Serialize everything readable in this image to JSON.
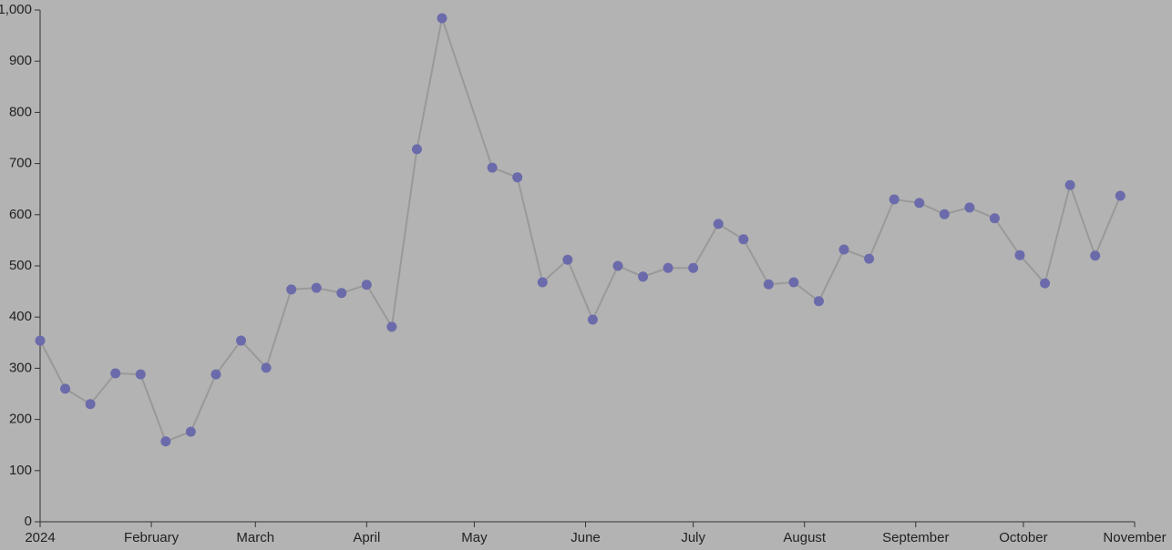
{
  "chart_data": {
    "type": "line",
    "x": [
      "2024-01-01",
      "2024-01-08",
      "2024-01-15",
      "2024-01-22",
      "2024-01-29",
      "2024-02-05",
      "2024-02-12",
      "2024-02-19",
      "2024-02-26",
      "2024-03-04",
      "2024-03-11",
      "2024-03-18",
      "2024-03-25",
      "2024-04-01",
      "2024-04-08",
      "2024-04-15",
      "2024-04-22",
      "2024-05-06",
      "2024-05-13",
      "2024-05-20",
      "2024-05-27",
      "2024-06-03",
      "2024-06-10",
      "2024-06-17",
      "2024-06-24",
      "2024-07-01",
      "2024-07-08",
      "2024-07-15",
      "2024-07-22",
      "2024-07-29",
      "2024-08-05",
      "2024-08-12",
      "2024-08-19",
      "2024-08-26",
      "2024-09-02",
      "2024-09-09",
      "2024-09-16",
      "2024-09-23",
      "2024-09-30",
      "2024-10-07",
      "2024-10-14",
      "2024-10-21",
      "2024-10-28"
    ],
    "values": [
      354,
      260,
      230,
      290,
      288,
      157,
      176,
      288,
      354,
      301,
      454,
      457,
      447,
      463,
      381,
      728,
      984,
      692,
      673,
      468,
      512,
      395,
      500,
      479,
      496,
      496,
      582,
      552,
      464,
      468,
      431,
      532,
      514,
      630,
      623,
      601,
      614,
      593,
      521,
      466,
      658,
      520,
      637
    ],
    "line_color": "#999999",
    "marker_color": "#6b6bab",
    "xlim": [
      "2024-01-01",
      "2024-11-01"
    ],
    "xticks": [
      {
        "value": "2024-01-01",
        "label": "2024"
      },
      {
        "value": "2024-02-01",
        "label": "February"
      },
      {
        "value": "2024-03-01",
        "label": "March"
      },
      {
        "value": "2024-04-01",
        "label": "April"
      },
      {
        "value": "2024-05-01",
        "label": "May"
      },
      {
        "value": "2024-06-01",
        "label": "June"
      },
      {
        "value": "2024-07-01",
        "label": "July"
      },
      {
        "value": "2024-08-01",
        "label": "August"
      },
      {
        "value": "2024-09-01",
        "label": "September"
      },
      {
        "value": "2024-10-01",
        "label": "October"
      },
      {
        "value": "2024-11-01",
        "label": "November"
      }
    ],
    "ylim": [
      0,
      1000
    ],
    "yticks": [
      0,
      100,
      200,
      300,
      400,
      500,
      600,
      700,
      800,
      900,
      {
        "value": 1000,
        "label": "1,000"
      }
    ]
  }
}
